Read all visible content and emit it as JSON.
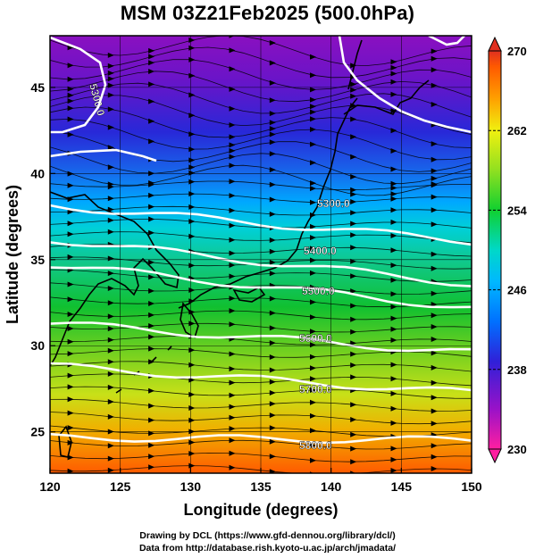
{
  "title": "MSM 03Z21Feb2025 (500.0hPa)",
  "credits": {
    "line1": "Drawing by DCL (https://www.gfd-dennou.org/library/dcl/)",
    "line2": "Data from http://database.rish.kyoto-u.ac.jp/arch/jmadata/"
  },
  "axes": {
    "xlabel": "Longitude (degrees)",
    "ylabel": "Latitude  (degrees)",
    "xticks": [
      "120",
      "125",
      "130",
      "135",
      "140",
      "145",
      "150"
    ],
    "yticks": [
      "25",
      "30",
      "35",
      "40",
      "45"
    ]
  },
  "colorbar": {
    "ticks": [
      "270",
      "262",
      "254",
      "246",
      "238",
      "230"
    ],
    "range": [
      230,
      270
    ],
    "colors": [
      "#ff1fa0",
      "#9a12c8",
      "#3020d8",
      "#0090ff",
      "#00d8c8",
      "#10d030",
      "#90e020",
      "#f0f010",
      "#ffa000",
      "#ff5a00",
      "#e03020"
    ]
  },
  "map": {
    "lon_range": [
      120,
      150
    ],
    "lat_range": [
      22.6,
      48
    ],
    "contours": [
      {
        "label": "5300.0"
      },
      {
        "label": "5400.0"
      },
      {
        "label": "5500.0"
      },
      {
        "label": "5600.0"
      },
      {
        "label": "5700.0"
      },
      {
        "label": "5800.0"
      },
      {
        "label": "5300.0"
      }
    ]
  }
}
